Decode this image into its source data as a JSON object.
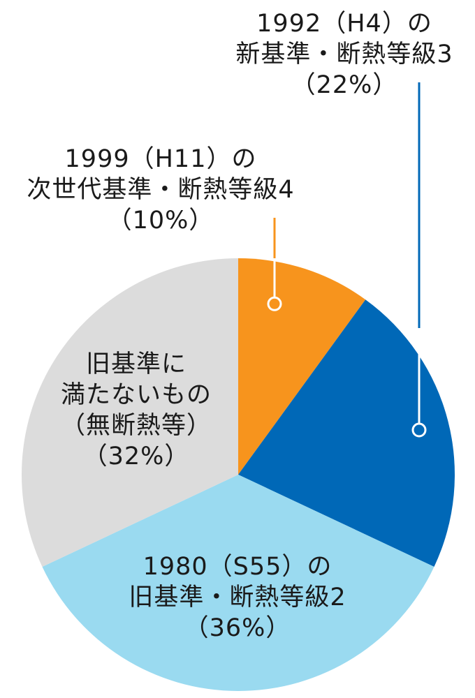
{
  "chart_data": {
    "type": "pie",
    "start": "top",
    "direction": "clockwise",
    "slices": [
      {
        "key": "h11",
        "label": [
          "1999（H11）の",
          "次世代基準・断熱等級4"
        ],
        "value": 10,
        "value_label": "（10%）",
        "color": "#F7941D"
      },
      {
        "key": "h4",
        "label": [
          "1992（H4）の",
          "新基準・断熱等級3"
        ],
        "value": 22,
        "value_label": "（22%）",
        "color": "#0068B7"
      },
      {
        "key": "s55",
        "label": [
          "1980（S55）の",
          "旧基準・断熱等級2"
        ],
        "value": 36,
        "value_label": "（36%）",
        "color": "#9ADAF0"
      },
      {
        "key": "old",
        "label": [
          "旧基準に",
          "満たないもの",
          "（無断熱等）"
        ],
        "value": 32,
        "value_label": "（32%）",
        "color": "#DCDCDC"
      }
    ]
  }
}
